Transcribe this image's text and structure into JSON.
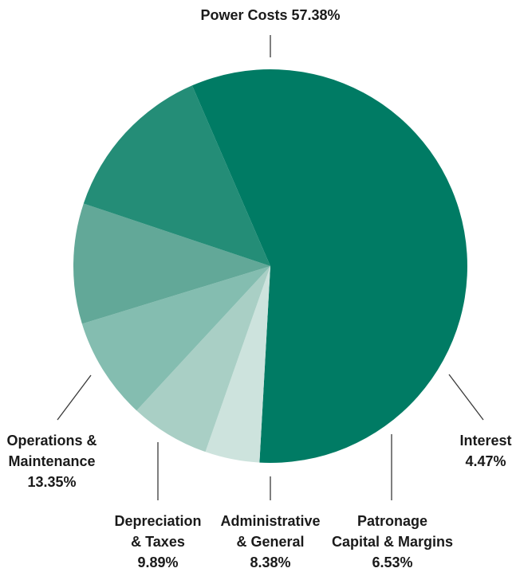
{
  "chart_data": {
    "type": "pie",
    "start_angle_deg": 246.6,
    "direction": "clockwise",
    "slices": [
      {
        "key": "power",
        "label_lines": [
          "Power Costs 57.38%"
        ],
        "value": 57.38,
        "color": "#007b64"
      },
      {
        "key": "interest",
        "label_lines": [
          "Interest",
          "4.47%"
        ],
        "value": 4.47,
        "color": "#cde3dd"
      },
      {
        "key": "patronage",
        "label_lines": [
          "Patronage",
          "Capital & Margins",
          "6.53%"
        ],
        "value": 6.53,
        "color": "#a9cfc5"
      },
      {
        "key": "admin",
        "label_lines": [
          "Administrative",
          "& General",
          "8.38%"
        ],
        "value": 8.38,
        "color": "#84bdb0"
      },
      {
        "key": "depreciation",
        "label_lines": [
          "Depreciation",
          "& Taxes",
          "9.89%"
        ],
        "value": 9.89,
        "color": "#62a898"
      },
      {
        "key": "operations",
        "label_lines": [
          "Operations &",
          "Maintenance",
          "13.35%"
        ],
        "value": 13.35,
        "color": "#248d77"
      }
    ]
  }
}
